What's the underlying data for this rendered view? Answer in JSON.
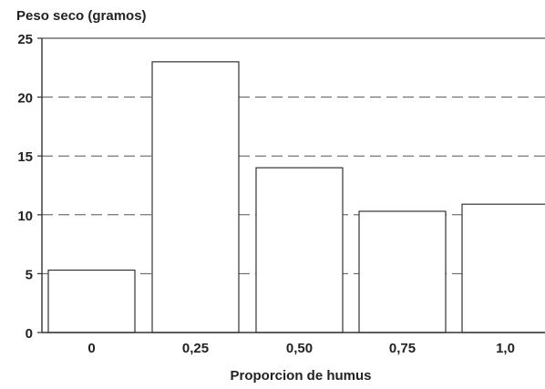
{
  "chart_data": {
    "type": "bar",
    "title": "",
    "ylabel": "Peso seco (gramos)",
    "xlabel": "Proporcion de humus",
    "categories": [
      "0",
      "0,25",
      "0,50",
      "0,75",
      "1,0"
    ],
    "values": [
      5.3,
      23.0,
      14.0,
      10.3,
      10.9
    ],
    "ylim": [
      0,
      25
    ],
    "yticks": [
      0,
      5,
      10,
      15,
      20,
      25
    ],
    "grid": "horizontal dashed",
    "colors": {
      "bar_fill": "#ffffff",
      "bar_stroke": "#333333",
      "grid": "#555555",
      "axis": "#333333",
      "text": "#222222"
    }
  }
}
